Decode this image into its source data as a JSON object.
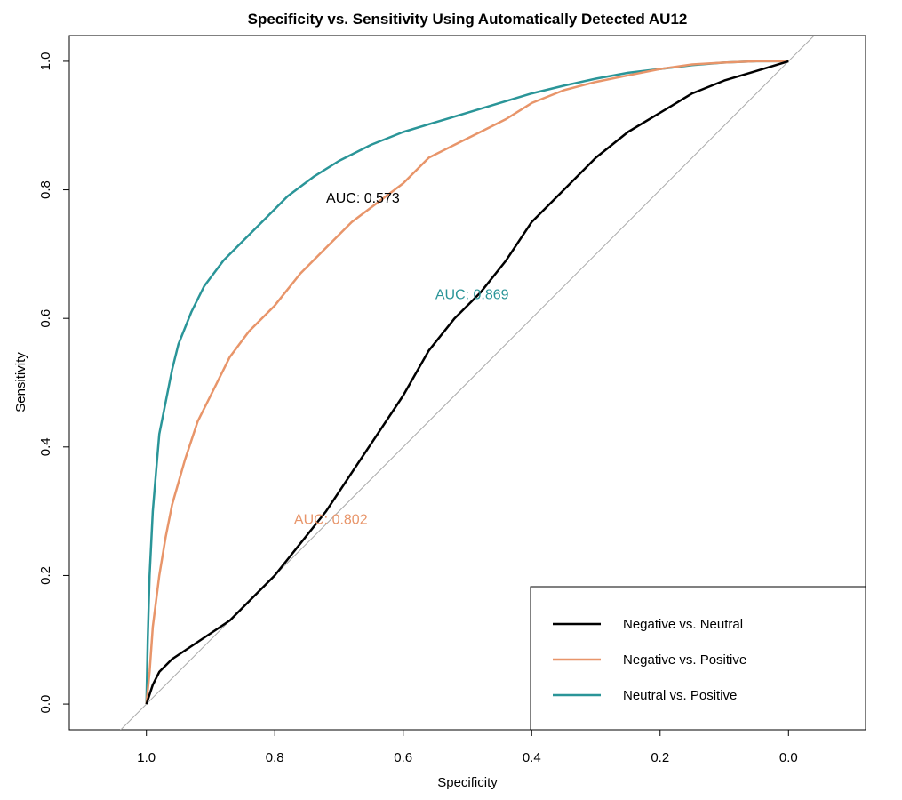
{
  "chart_data": {
    "type": "line",
    "title": "Specificity vs. Sensitivity Using Automatically Detected AU12",
    "xlabel": "Specificity",
    "ylabel": "Sensitivity",
    "xlim": [
      1.12,
      -0.12
    ],
    "ylim": [
      -0.04,
      1.04
    ],
    "x_reversed": true,
    "x_ticks": [
      "1.0",
      "0.8",
      "0.6",
      "0.4",
      "0.2",
      "0.0"
    ],
    "x_tick_values": [
      1.0,
      0.8,
      0.6,
      0.4,
      0.2,
      0.0
    ],
    "y_ticks": [
      "0.0",
      "0.2",
      "0.4",
      "0.6",
      "0.8",
      "1.0"
    ],
    "y_tick_values": [
      0.0,
      0.2,
      0.4,
      0.6,
      0.8,
      1.0
    ],
    "reference_line": {
      "color": "#aaaaaa",
      "description": "diagonal"
    },
    "legend_position": "bottom-right",
    "series": [
      {
        "name": "Negative vs. Neutral",
        "color": "#000000",
        "auc_label": "AUC: 0.573",
        "auc_pos": [
          0.72,
          0.78
        ],
        "points": [
          [
            1.0,
            0.0
          ],
          [
            0.99,
            0.03
          ],
          [
            0.98,
            0.05
          ],
          [
            0.96,
            0.07
          ],
          [
            0.93,
            0.09
          ],
          [
            0.9,
            0.11
          ],
          [
            0.87,
            0.13
          ],
          [
            0.83,
            0.17
          ],
          [
            0.8,
            0.2
          ],
          [
            0.76,
            0.25
          ],
          [
            0.72,
            0.3
          ],
          [
            0.68,
            0.36
          ],
          [
            0.64,
            0.42
          ],
          [
            0.6,
            0.48
          ],
          [
            0.56,
            0.55
          ],
          [
            0.52,
            0.6
          ],
          [
            0.48,
            0.64
          ],
          [
            0.44,
            0.69
          ],
          [
            0.4,
            0.75
          ],
          [
            0.35,
            0.8
          ],
          [
            0.3,
            0.85
          ],
          [
            0.25,
            0.89
          ],
          [
            0.2,
            0.92
          ],
          [
            0.15,
            0.95
          ],
          [
            0.1,
            0.97
          ],
          [
            0.05,
            0.985
          ],
          [
            0.0,
            1.0
          ]
        ]
      },
      {
        "name": "Negative vs. Positive",
        "color": "#e8956a",
        "auc_label": "AUC: 0.802",
        "auc_pos": [
          0.77,
          0.28
        ],
        "points": [
          [
            1.0,
            0.0
          ],
          [
            0.995,
            0.05
          ],
          [
            0.99,
            0.12
          ],
          [
            0.98,
            0.2
          ],
          [
            0.97,
            0.26
          ],
          [
            0.96,
            0.31
          ],
          [
            0.94,
            0.38
          ],
          [
            0.92,
            0.44
          ],
          [
            0.9,
            0.48
          ],
          [
            0.87,
            0.54
          ],
          [
            0.84,
            0.58
          ],
          [
            0.8,
            0.62
          ],
          [
            0.76,
            0.67
          ],
          [
            0.72,
            0.71
          ],
          [
            0.68,
            0.75
          ],
          [
            0.64,
            0.78
          ],
          [
            0.6,
            0.81
          ],
          [
            0.56,
            0.85
          ],
          [
            0.52,
            0.87
          ],
          [
            0.48,
            0.89
          ],
          [
            0.44,
            0.91
          ],
          [
            0.4,
            0.935
          ],
          [
            0.35,
            0.955
          ],
          [
            0.3,
            0.968
          ],
          [
            0.25,
            0.978
          ],
          [
            0.2,
            0.988
          ],
          [
            0.15,
            0.995
          ],
          [
            0.1,
            0.998
          ],
          [
            0.05,
            1.0
          ],
          [
            0.0,
            1.0
          ]
        ]
      },
      {
        "name": "Neutral vs. Positive",
        "color": "#2a9598",
        "auc_label": "AUC: 0.869",
        "auc_pos": [
          0.55,
          0.63
        ],
        "points": [
          [
            1.0,
            0.0
          ],
          [
            0.998,
            0.1
          ],
          [
            0.995,
            0.2
          ],
          [
            0.99,
            0.3
          ],
          [
            0.985,
            0.36
          ],
          [
            0.98,
            0.42
          ],
          [
            0.97,
            0.47
          ],
          [
            0.96,
            0.52
          ],
          [
            0.95,
            0.56
          ],
          [
            0.93,
            0.61
          ],
          [
            0.91,
            0.65
          ],
          [
            0.88,
            0.69
          ],
          [
            0.85,
            0.72
          ],
          [
            0.82,
            0.75
          ],
          [
            0.78,
            0.79
          ],
          [
            0.74,
            0.82
          ],
          [
            0.7,
            0.845
          ],
          [
            0.65,
            0.87
          ],
          [
            0.6,
            0.89
          ],
          [
            0.55,
            0.905
          ],
          [
            0.5,
            0.92
          ],
          [
            0.45,
            0.935
          ],
          [
            0.4,
            0.95
          ],
          [
            0.35,
            0.962
          ],
          [
            0.3,
            0.973
          ],
          [
            0.25,
            0.982
          ],
          [
            0.2,
            0.988
          ],
          [
            0.15,
            0.994
          ],
          [
            0.1,
            0.998
          ],
          [
            0.05,
            1.0
          ],
          [
            0.0,
            1.0
          ]
        ]
      }
    ]
  }
}
